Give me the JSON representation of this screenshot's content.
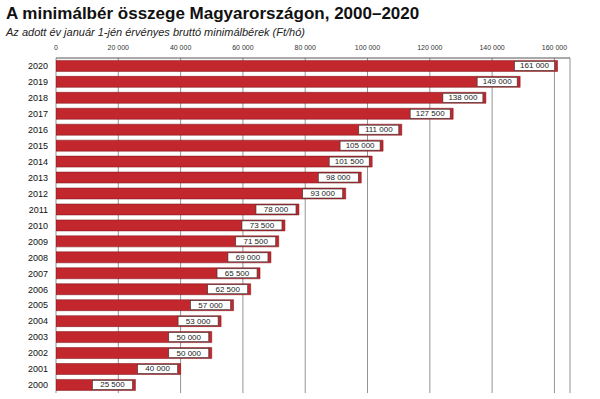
{
  "chart_data": {
    "type": "bar",
    "title": "A minimálbér összege Magyarországon, 2000–2020",
    "subtitle": "Az adott év január 1-jén érvényes bruttó minimálbérek (Ft/hó)",
    "orientation": "horizontal",
    "categories": [
      "2020",
      "2019",
      "2018",
      "2017",
      "2016",
      "2015",
      "2014",
      "2013",
      "2012",
      "2011",
      "2010",
      "2009",
      "2008",
      "2007",
      "2006",
      "2005",
      "2004",
      "2003",
      "2002",
      "2001",
      "2000"
    ],
    "values": [
      161000,
      149000,
      138000,
      127500,
      111000,
      105000,
      101500,
      98000,
      93000,
      78000,
      73500,
      71500,
      69000,
      65500,
      62500,
      57000,
      53000,
      50000,
      50000,
      40000,
      25500
    ],
    "value_labels": [
      "161 000",
      "149 000",
      "138 000",
      "127 500",
      "111 000",
      "105 000",
      "101 500",
      "98 000",
      "93 000",
      "78 000",
      "73 500",
      "71 500",
      "69 000",
      "65 500",
      "62 500",
      "57 000",
      "53 000",
      "50 000",
      "50 000",
      "40 000",
      "25 500"
    ],
    "color": "#c1272d",
    "xlim": [
      0,
      165000
    ],
    "xticks": [
      0,
      {
        "value": 20000,
        "label": "20 000"
      },
      {
        "value": 40000,
        "label": "40 000"
      },
      {
        "value": 60000,
        "label": "60 000"
      },
      {
        "value": 80000,
        "label": "80 000"
      },
      {
        "value": 100000,
        "label": "100 000"
      },
      {
        "value": 120000,
        "label": "120 000"
      },
      {
        "value": 140000,
        "label": "140 000"
      },
      {
        "value": 160000,
        "label": "160 000"
      }
    ],
    "grid": true,
    "data_labels": true
  }
}
